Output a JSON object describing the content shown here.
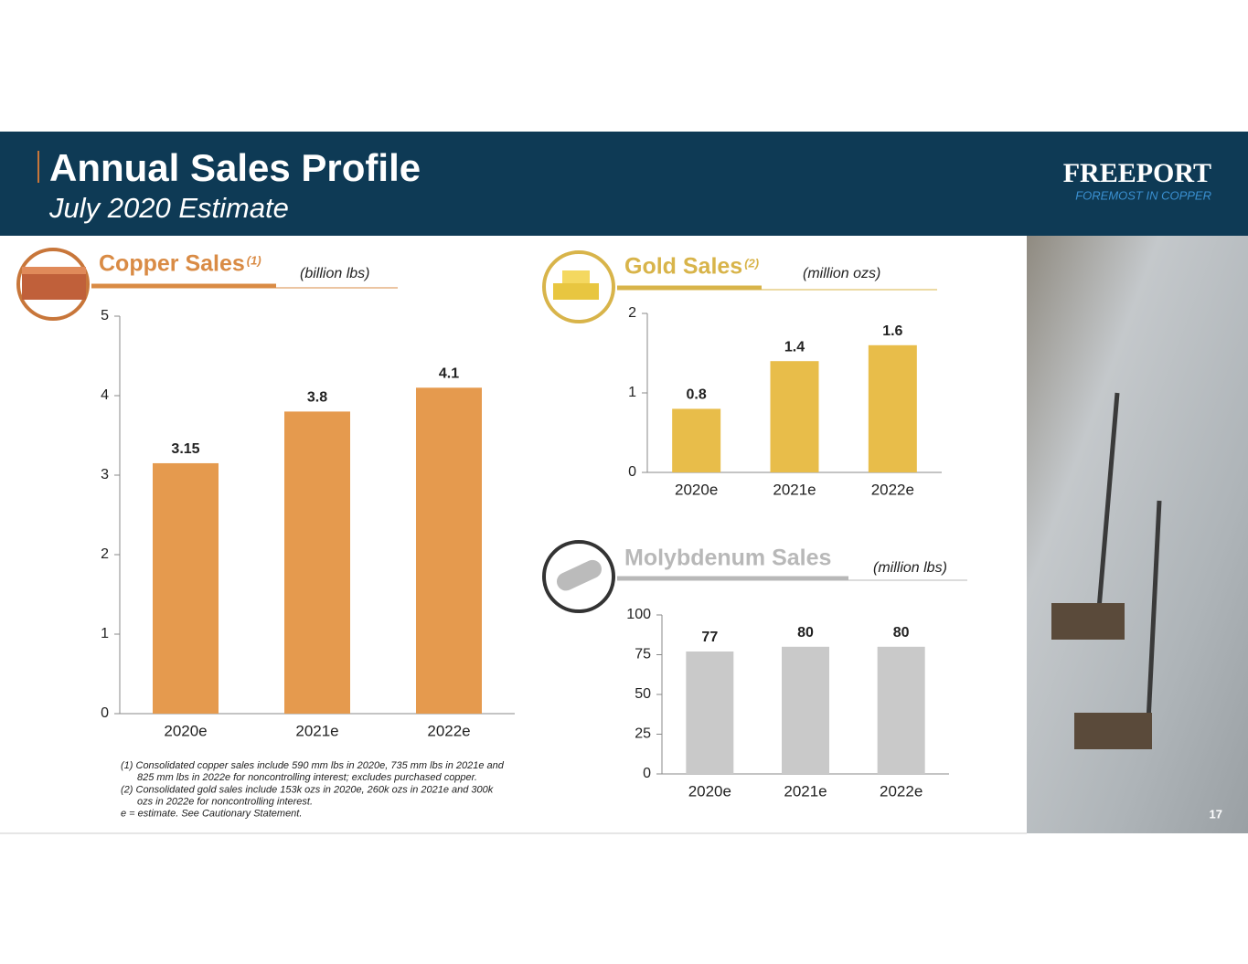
{
  "header": {
    "title": "Annual Sales Profile",
    "subtitle": "July 2020 Estimate",
    "logo": "FREEPORT",
    "tagline": "FOREMOST IN COPPER"
  },
  "chart_data": [
    {
      "type": "bar",
      "title": "Copper Sales",
      "title_note": "(1)",
      "unit": "(billion lbs)",
      "categories": [
        "2020e",
        "2021e",
        "2022e"
      ],
      "values": [
        3.15,
        3.8,
        4.1
      ],
      "color": "#e59a4e",
      "ylim": [
        0,
        5
      ],
      "yticks": [
        0,
        1,
        2,
        3,
        4,
        5
      ]
    },
    {
      "type": "bar",
      "title": "Gold Sales",
      "title_note": "(2)",
      "unit": "(million ozs)",
      "categories": [
        "2020e",
        "2021e",
        "2022e"
      ],
      "values": [
        0.8,
        1.4,
        1.6
      ],
      "color": "#e8bd4a",
      "ylim": [
        0,
        2
      ],
      "yticks": [
        0,
        1,
        2
      ]
    },
    {
      "type": "bar",
      "title": "Molybdenum  Sales",
      "unit": "(million lbs)",
      "categories": [
        "2020e",
        "2021e",
        "2022e"
      ],
      "values": [
        77,
        80,
        80
      ],
      "color": "#c9c9c9",
      "ylim": [
        0,
        100
      ],
      "yticks": [
        0,
        25,
        50,
        75,
        100
      ]
    }
  ],
  "footnotes": [
    "(1) Consolidated copper sales include 590 mm lbs in 2020e, 735 mm lbs in 2021e and",
    "825 mm lbs in 2022e for noncontrolling interest; excludes purchased copper.",
    "(2) Consolidated gold sales include 153k ozs in 2020e, 260k ozs in 2021e and 300k",
    "ozs in 2022e for noncontrolling interest.",
    "e = estimate. See Cautionary Statement."
  ],
  "page_number": "17"
}
